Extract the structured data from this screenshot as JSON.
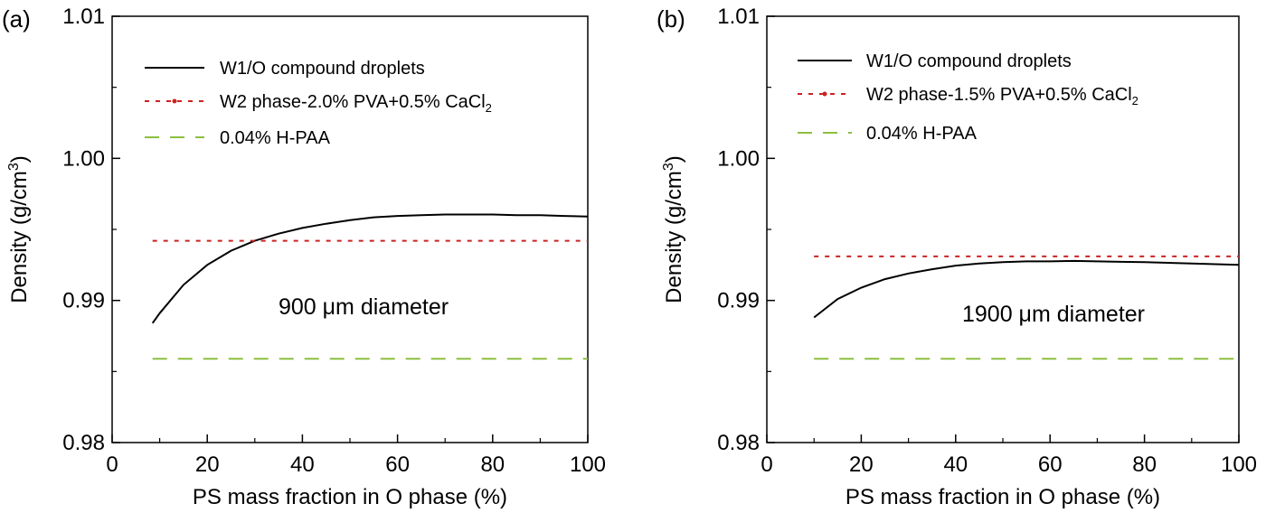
{
  "chart_data": [
    {
      "type": "line",
      "panel_label": "(a)",
      "annotation": "900 μm diameter",
      "xlabel": "PS mass fraction in O phase (%)",
      "ylabel_main": "Density (g/cm",
      "ylabel_sup": "3",
      "ylabel_end": ")",
      "xlim": [
        0,
        100
      ],
      "ylim": [
        0.98,
        1.01
      ],
      "xticks": [
        0,
        20,
        40,
        60,
        80,
        100
      ],
      "xtick_labels": [
        "0",
        "20",
        "40",
        "60",
        "80",
        "100"
      ],
      "yticks": [
        0.98,
        0.99,
        1.0,
        1.01
      ],
      "ytick_labels": [
        "0.98",
        "0.99",
        "1.00",
        "1.01"
      ],
      "legend_position": "top-left",
      "series": [
        {
          "name": "W1/O compound droplets",
          "style": "solid",
          "color": "#000000",
          "x": [
            8.5,
            10,
            15,
            20,
            25,
            30,
            35,
            40,
            45,
            50,
            55,
            60,
            65,
            70,
            75,
            80,
            85,
            90,
            95,
            100
          ],
          "y": [
            0.9884,
            0.9891,
            0.9911,
            0.9925,
            0.9935,
            0.9942,
            0.9947,
            0.9951,
            0.9954,
            0.99565,
            0.99585,
            0.99595,
            0.996,
            0.99605,
            0.99605,
            0.99605,
            0.996,
            0.996,
            0.99595,
            0.9959
          ]
        },
        {
          "name": "W2 phase-2.0% PVA+0.5% CaCl",
          "name_sub": "2",
          "style": "dotted",
          "color": "#cc2222",
          "x": [
            8.5,
            100
          ],
          "y": [
            0.9942,
            0.9942
          ]
        },
        {
          "name": "0.04% H-PAA",
          "style": "dashed",
          "color": "#8cbf3f",
          "x": [
            8.5,
            100
          ],
          "y": [
            0.9859,
            0.9859
          ]
        }
      ]
    },
    {
      "type": "line",
      "panel_label": "(b)",
      "annotation": "1900 μm diameter",
      "xlabel": "PS mass fraction in O phase (%)",
      "ylabel_main": "Density (g/cm",
      "ylabel_sup": "3",
      "ylabel_end": ")",
      "xlim": [
        0,
        100
      ],
      "ylim": [
        0.98,
        1.01
      ],
      "xticks": [
        0,
        20,
        40,
        60,
        80,
        100
      ],
      "xtick_labels": [
        "0",
        "20",
        "40",
        "60",
        "80",
        "100"
      ],
      "yticks": [
        0.98,
        0.99,
        1.0,
        1.01
      ],
      "ytick_labels": [
        "0.98",
        "0.99",
        "1.00",
        "1.01"
      ],
      "legend_position": "top-left",
      "series": [
        {
          "name": "W1/O compound droplets",
          "style": "solid",
          "color": "#000000",
          "x": [
            10,
            15,
            20,
            25,
            30,
            35,
            40,
            45,
            50,
            55,
            60,
            65,
            70,
            75,
            80,
            85,
            90,
            95,
            100
          ],
          "y": [
            0.9888,
            0.9901,
            0.9909,
            0.9915,
            0.9919,
            0.9922,
            0.99245,
            0.9926,
            0.9927,
            0.99275,
            0.99275,
            0.99278,
            0.99275,
            0.99272,
            0.9927,
            0.99265,
            0.9926,
            0.99255,
            0.9925
          ]
        },
        {
          "name": "W2 phase-1.5% PVA+0.5% CaCl",
          "name_sub": "2",
          "style": "dotted",
          "color": "#cc2222",
          "x": [
            10,
            100
          ],
          "y": [
            0.9931,
            0.9931
          ]
        },
        {
          "name": "0.04% H-PAA",
          "style": "dashed",
          "color": "#8cbf3f",
          "x": [
            10,
            100
          ],
          "y": [
            0.9859,
            0.9859
          ]
        }
      ]
    }
  ]
}
